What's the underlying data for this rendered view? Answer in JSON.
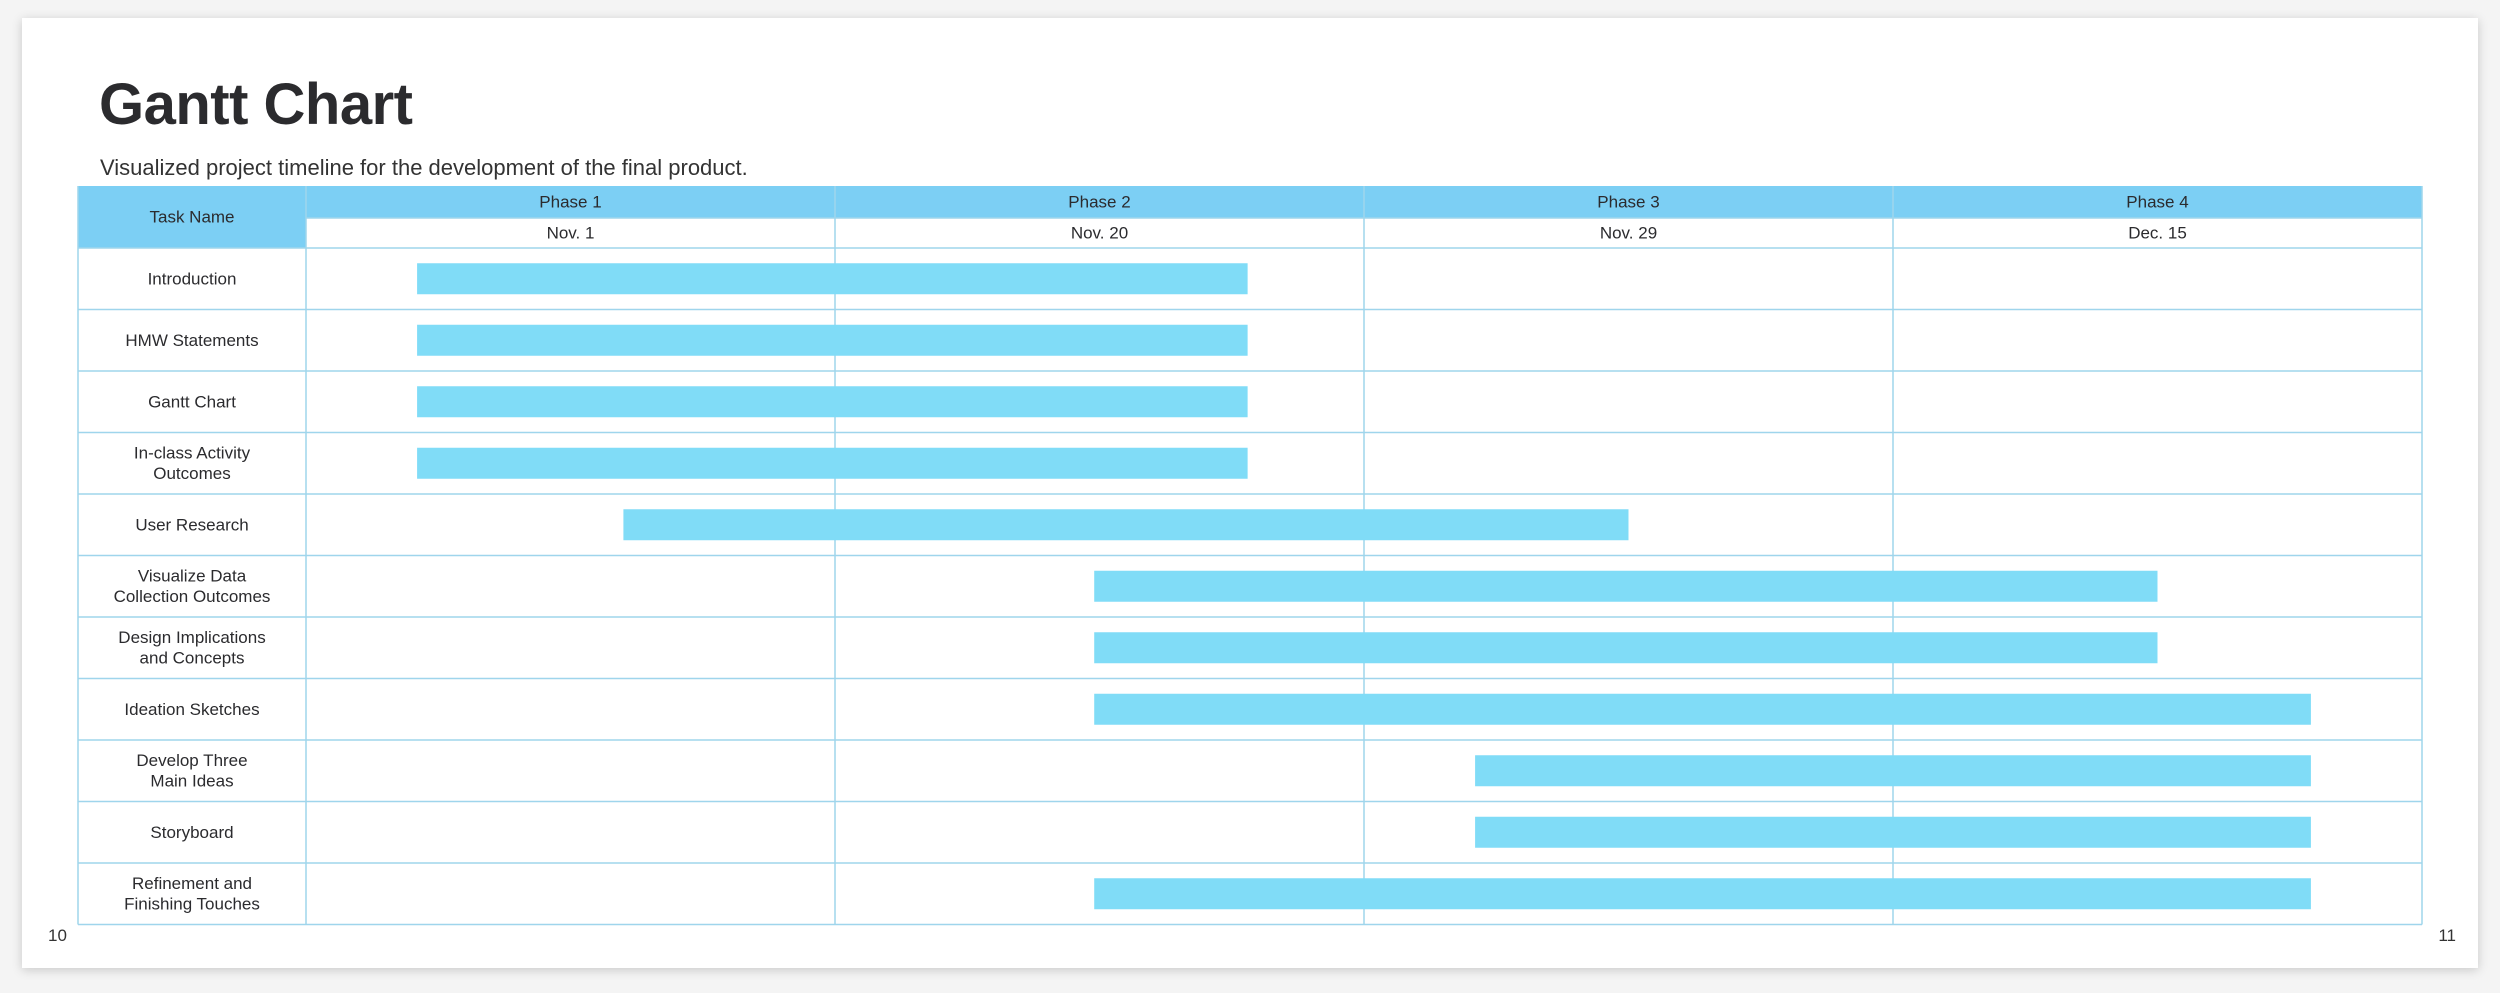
{
  "page": {
    "title": "Gantt Chart",
    "subtitle": "Visualized project timeline for the development of the final product.",
    "page_left": "10",
    "page_right": "11"
  },
  "colors": {
    "header_fill": "#7ccff4",
    "bar_fill": "#80dcf7",
    "grid_line": "#9fd5ec"
  },
  "chart_data": {
    "type": "gantt",
    "task_header": "Task Name",
    "phases": [
      {
        "label": "Phase 1",
        "date": "Nov. 1"
      },
      {
        "label": "Phase 2",
        "date": "Nov. 20"
      },
      {
        "label": "Phase 3",
        "date": "Nov. 29"
      },
      {
        "label": "Phase 4",
        "date": "Dec. 15"
      }
    ],
    "tasks": [
      {
        "name": [
          "Introduction"
        ],
        "start": 0.21,
        "end": 1.78
      },
      {
        "name": [
          "HMW Statements"
        ],
        "start": 0.21,
        "end": 1.78
      },
      {
        "name": [
          "Gantt Chart"
        ],
        "start": 0.21,
        "end": 1.78
      },
      {
        "name": [
          "In-class Activity",
          "Outcomes"
        ],
        "start": 0.21,
        "end": 1.78
      },
      {
        "name": [
          "User Research"
        ],
        "start": 0.6,
        "end": 2.5
      },
      {
        "name": [
          "Visualize Data",
          "Collection Outcomes"
        ],
        "start": 1.49,
        "end": 3.5
      },
      {
        "name": [
          "Design Implications",
          "and Concepts"
        ],
        "start": 1.49,
        "end": 3.5
      },
      {
        "name": [
          "Ideation Sketches"
        ],
        "start": 1.49,
        "end": 3.79
      },
      {
        "name": [
          "Develop Three",
          "Main Ideas"
        ],
        "start": 2.21,
        "end": 3.79
      },
      {
        "name": [
          "Storyboard"
        ],
        "start": 2.21,
        "end": 3.79
      },
      {
        "name": [
          "Refinement and",
          "Finishing Touches"
        ],
        "start": 1.49,
        "end": 3.79
      }
    ]
  }
}
